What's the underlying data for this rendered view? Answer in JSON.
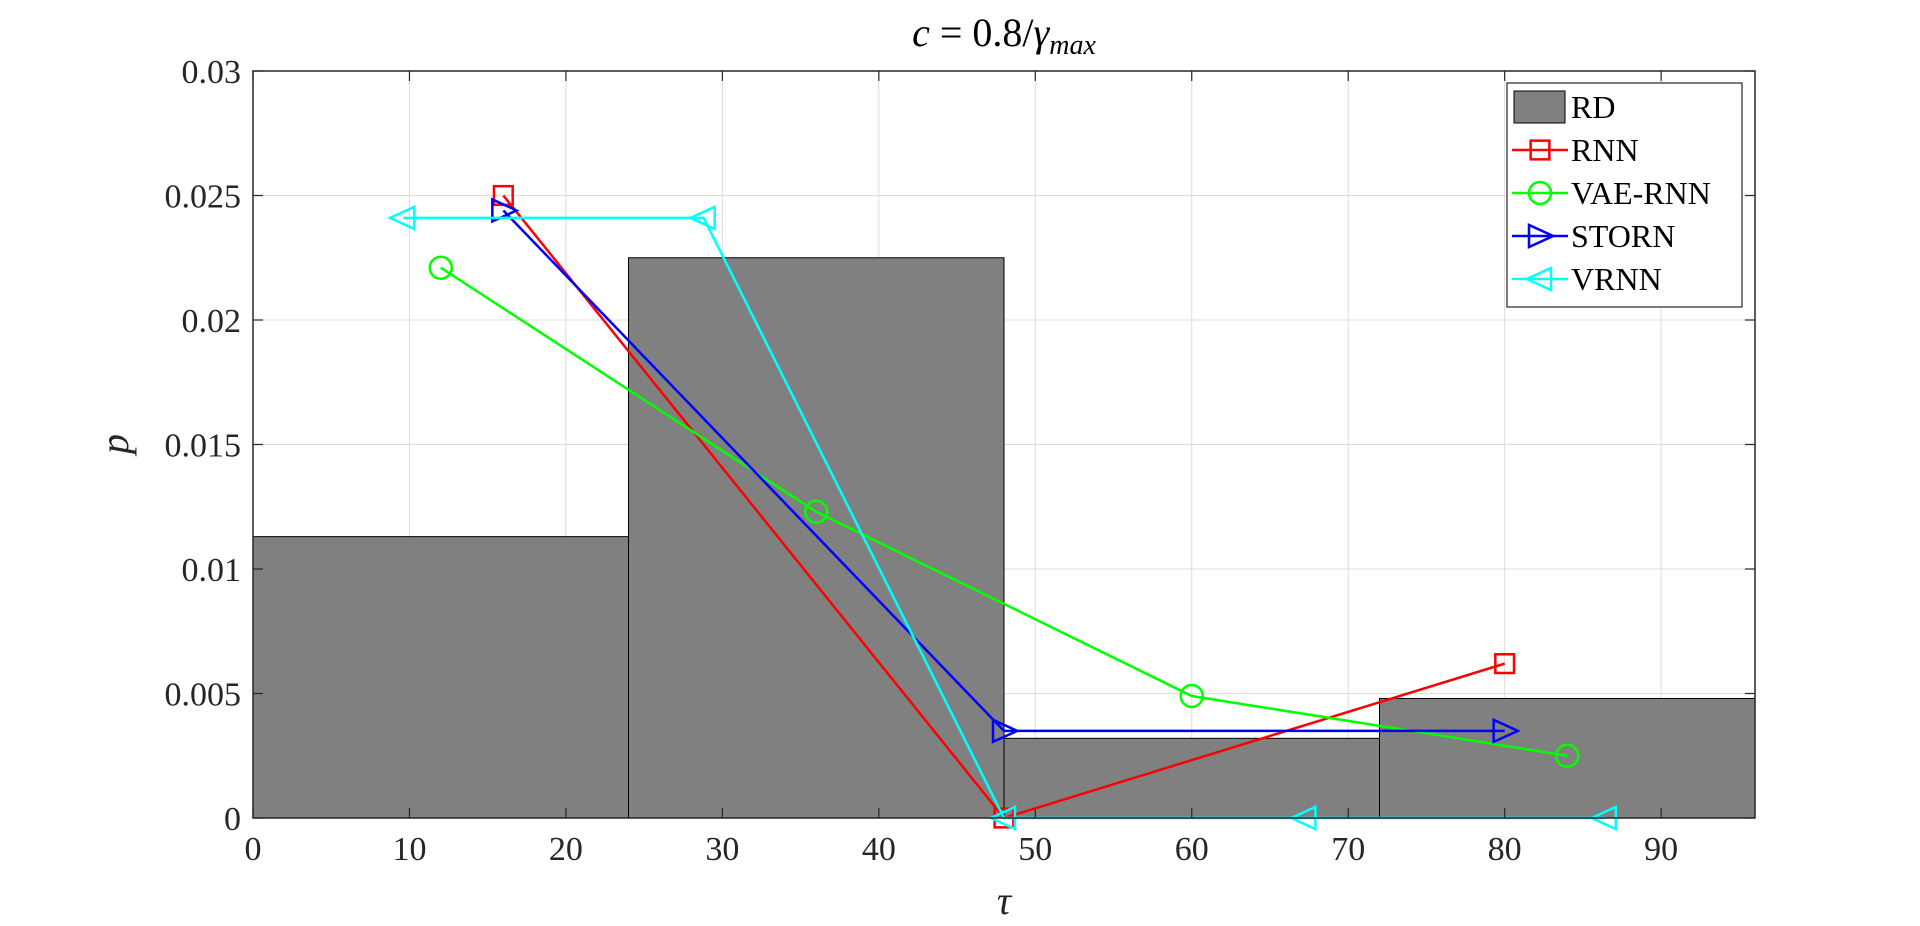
{
  "chart_data": {
    "type": "bar",
    "title": "c = 0.8/γmax",
    "title_parts": {
      "lhs": "c",
      "eq": " = 0.8/",
      "gamma": "γ",
      "sub": "max"
    },
    "xlabel": "τ",
    "ylabel": "p",
    "xlim": [
      0,
      96
    ],
    "ylim": [
      0,
      0.03
    ],
    "xticks": [
      0,
      10,
      20,
      30,
      40,
      50,
      60,
      70,
      80,
      90
    ],
    "xtick_labels": [
      "0",
      "10",
      "20",
      "30",
      "40",
      "50",
      "60",
      "70",
      "80",
      "90"
    ],
    "yticks": [
      0,
      0.005,
      0.01,
      0.015,
      0.02,
      0.025,
      0.03
    ],
    "ytick_labels": [
      "0",
      "0.005",
      "0.01",
      "0.015",
      "0.02",
      "0.025",
      "0.03"
    ],
    "grid": true,
    "legend_position": "top-right",
    "histogram": {
      "name": "RD",
      "color": "#808080",
      "bins": [
        {
          "x0": 0,
          "x1": 24,
          "value": 0.0113
        },
        {
          "x0": 24,
          "x1": 48,
          "value": 0.0225
        },
        {
          "x0": 48,
          "x1": 72,
          "value": 0.0032
        },
        {
          "x0": 72,
          "x1": 96,
          "value": 0.0048
        }
      ]
    },
    "series": [
      {
        "name": "RNN",
        "color": "#ff0000",
        "marker": "square",
        "x": [
          16,
          48,
          80
        ],
        "y": [
          0.025,
          0.0,
          0.0062
        ]
      },
      {
        "name": "VAE-RNN",
        "color": "#00ff00",
        "marker": "circle",
        "x": [
          12,
          36,
          60,
          84
        ],
        "y": [
          0.0221,
          0.0123,
          0.0049,
          0.0025
        ]
      },
      {
        "name": "STORN",
        "color": "#0000ff",
        "marker": "triangle-right",
        "x": [
          16,
          48,
          80
        ],
        "y": [
          0.0244,
          0.0035,
          0.0035
        ]
      },
      {
        "name": "VRNN",
        "color": "#00ffff",
        "marker": "triangle-left",
        "x": [
          9.6,
          28.8,
          48,
          67.2,
          86.4
        ],
        "y": [
          0.0241,
          0.0241,
          0.0,
          0.0,
          0.0
        ]
      }
    ]
  }
}
